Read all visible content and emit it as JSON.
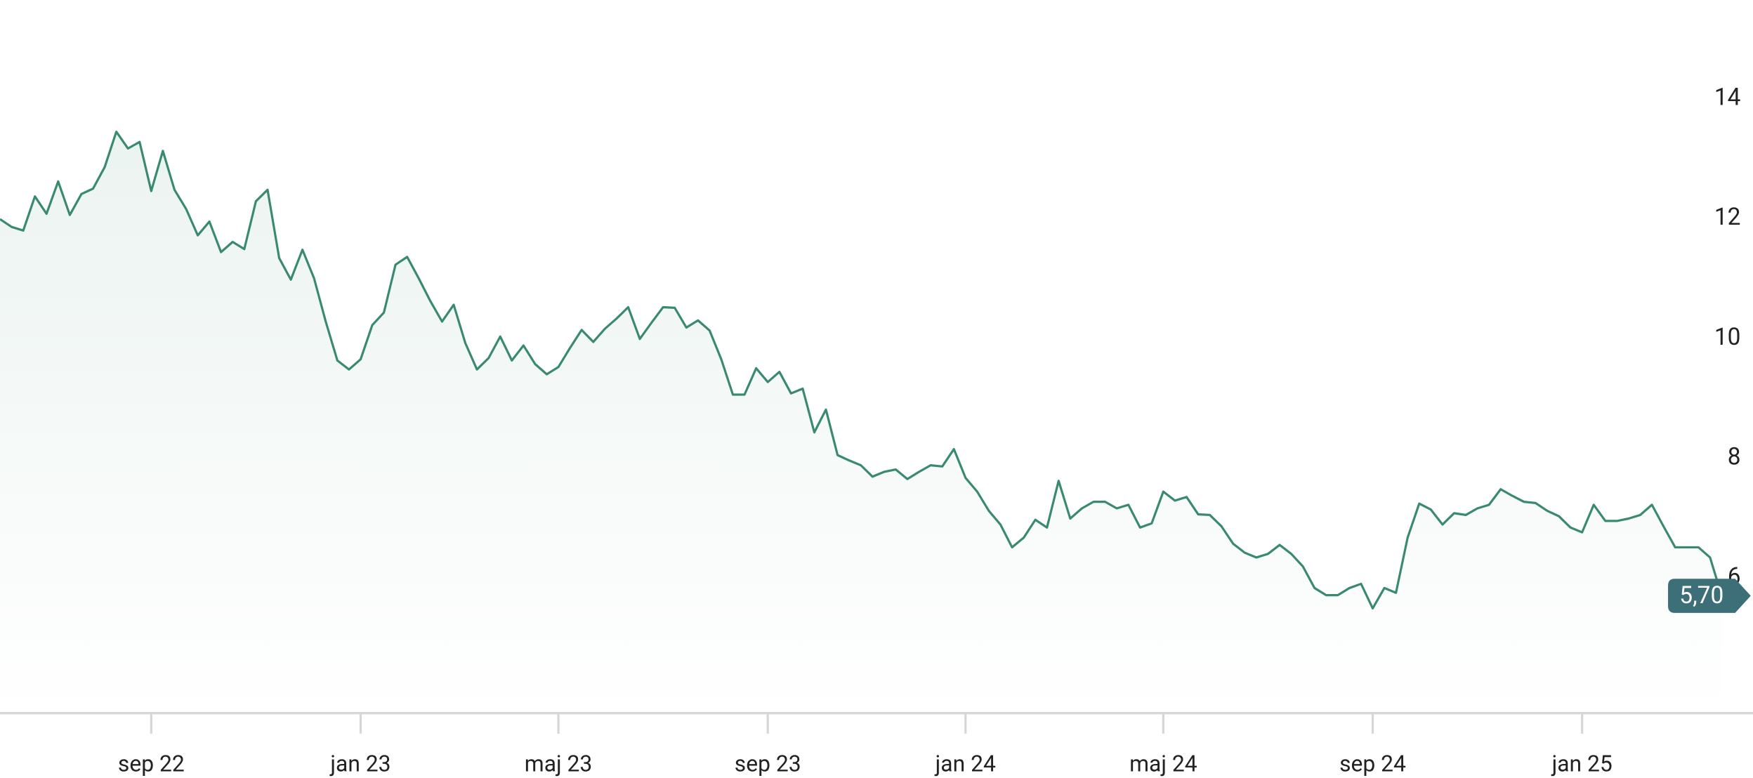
{
  "chart_data": {
    "type": "line",
    "categories": [
      null,
      null,
      null,
      null,
      null,
      null,
      null,
      null,
      null,
      null,
      null,
      null,
      null,
      "sep 22",
      null,
      null,
      null,
      null,
      null,
      null,
      null,
      null,
      null,
      null,
      null,
      null,
      null,
      null,
      null,
      null,
      null,
      "jan 23",
      null,
      null,
      null,
      null,
      null,
      null,
      null,
      null,
      null,
      null,
      null,
      null,
      null,
      null,
      null,
      null,
      "maj 23",
      null,
      null,
      null,
      null,
      null,
      null,
      null,
      null,
      null,
      null,
      null,
      null,
      null,
      null,
      null,
      null,
      null,
      "sep 23",
      null,
      null,
      null,
      null,
      null,
      null,
      null,
      null,
      null,
      null,
      null,
      null,
      null,
      null,
      null,
      null,
      "jan 24",
      null,
      null,
      null,
      null,
      null,
      null,
      null,
      null,
      null,
      null,
      null,
      null,
      null,
      null,
      null,
      null,
      "maj 24",
      null,
      null,
      null,
      null,
      null,
      null,
      null,
      null,
      null,
      null,
      null,
      null,
      null,
      null,
      null,
      null,
      null,
      "sep 24",
      null,
      null,
      null,
      null,
      null,
      null,
      null,
      null,
      null,
      null,
      null,
      null,
      null,
      null,
      null,
      null,
      null,
      "jan 25",
      null,
      null,
      null,
      null,
      null,
      null,
      null,
      null,
      null,
      null,
      null,
      null
    ],
    "values": [
      11.99,
      11.86,
      11.8,
      12.37,
      12.08,
      12.62,
      12.06,
      12.41,
      12.5,
      12.86,
      13.45,
      13.17,
      13.28,
      12.46,
      13.13,
      12.48,
      12.16,
      11.72,
      11.95,
      11.44,
      11.61,
      11.49,
      12.29,
      12.48,
      11.34,
      10.98,
      11.48,
      11.0,
      10.28,
      9.63,
      9.48,
      9.65,
      10.22,
      10.43,
      11.23,
      11.36,
      11.0,
      10.62,
      10.28,
      10.56,
      9.92,
      9.48,
      9.67,
      10.03,
      9.63,
      9.88,
      9.57,
      9.4,
      9.52,
      9.84,
      10.14,
      9.94,
      10.16,
      10.33,
      10.52,
      9.99,
      10.26,
      10.52,
      10.51,
      10.18,
      10.3,
      10.13,
      9.65,
      9.06,
      9.06,
      9.5,
      9.27,
      9.44,
      9.08,
      9.16,
      8.43,
      8.81,
      8.05,
      7.96,
      7.88,
      7.69,
      7.77,
      7.81,
      7.65,
      7.77,
      7.88,
      7.86,
      8.15,
      7.67,
      7.44,
      7.12,
      6.89,
      6.51,
      6.67,
      6.97,
      6.84,
      7.62,
      6.99,
      7.16,
      7.27,
      7.27,
      7.16,
      7.22,
      6.84,
      6.91,
      7.44,
      7.29,
      7.35,
      7.06,
      7.05,
      6.86,
      6.57,
      6.42,
      6.34,
      6.4,
      6.55,
      6.4,
      6.19,
      5.83,
      5.71,
      5.71,
      5.83,
      5.9,
      5.49,
      5.83,
      5.75,
      6.67,
      7.24,
      7.14,
      6.89,
      7.08,
      7.05,
      7.16,
      7.22,
      7.48,
      7.37,
      7.27,
      7.25,
      7.12,
      7.03,
      6.84,
      6.76,
      7.22,
      6.95,
      6.95,
      6.99,
      7.05,
      7.22,
      6.86,
      6.51,
      6.51,
      6.51,
      6.34,
      5.7
    ],
    "color": "#3a8a6e",
    "ylim": [
      3.74,
      15.65
    ],
    "yticks": [
      6,
      8,
      10,
      12,
      14
    ],
    "annotations": [
      {
        "label": "5,70",
        "value": 5.7
      }
    ]
  }
}
